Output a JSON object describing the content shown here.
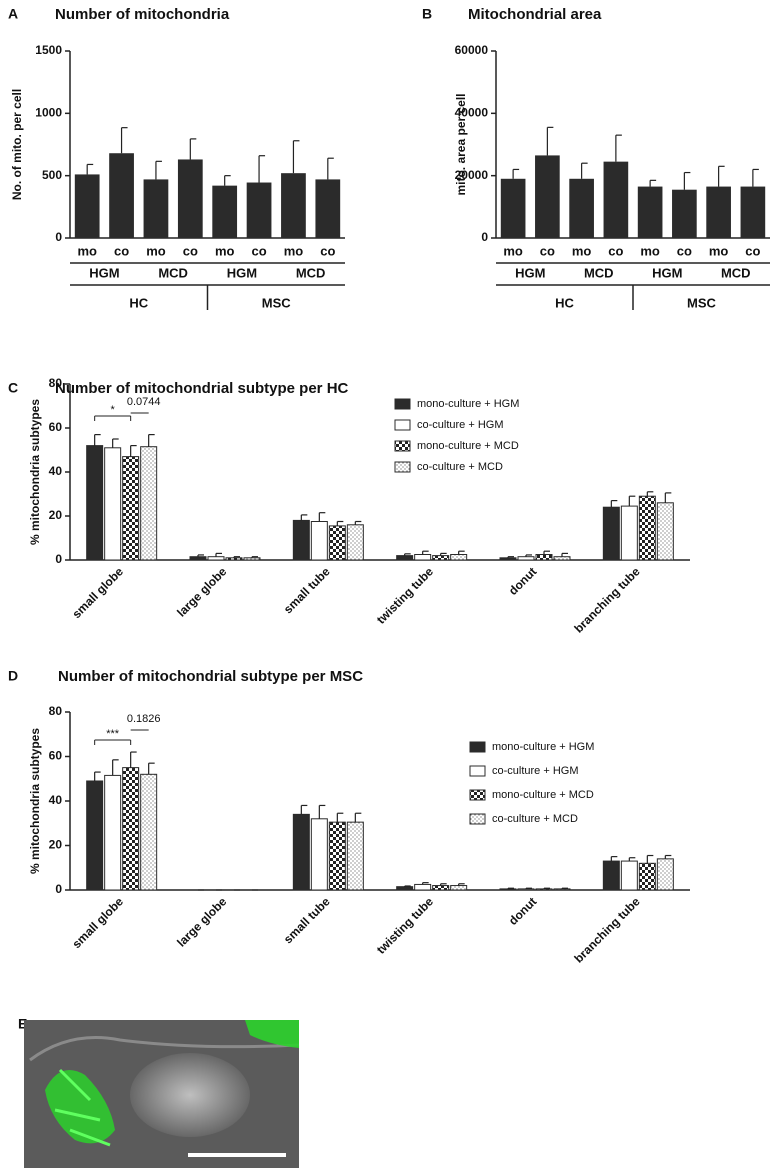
{
  "chart_data": [
    {
      "type": "bar",
      "panel_label": "A",
      "title": "Number of mitochondria",
      "y_label": "No. of mito. per cell",
      "categories": [
        "mo",
        "co",
        "mo",
        "co",
        "mo",
        "co",
        "mo",
        "co"
      ],
      "category_groups": [
        "HGM",
        "MCD",
        "HGM",
        "MCD"
      ],
      "super_groups": [
        "HC",
        "MSC"
      ],
      "values": [
        510,
        680,
        470,
        630,
        420,
        445,
        520,
        470
      ],
      "errors": [
        80,
        205,
        145,
        165,
        80,
        215,
        260,
        170
      ],
      "color": "#2b2b2b",
      "ylim": [
        0,
        1500
      ],
      "yticks": [
        0,
        500,
        1000,
        1500
      ]
    },
    {
      "type": "bar",
      "panel_label": "B",
      "title": "Mitochondrial area",
      "y_label": "mito. area per cell",
      "categories": [
        "mo",
        "co",
        "mo",
        "co",
        "mo",
        "co",
        "mo",
        "co"
      ],
      "category_groups": [
        "HGM",
        "MCD",
        "HGM",
        "MCD"
      ],
      "super_groups": [
        "HC",
        "MSC"
      ],
      "values": [
        19000,
        26500,
        19000,
        24500,
        16500,
        15500,
        16500,
        16500
      ],
      "errors": [
        3000,
        9000,
        5000,
        8500,
        2000,
        5500,
        6500,
        5500
      ],
      "color": "#2b2b2b",
      "ylim": [
        0,
        60000
      ],
      "yticks": [
        0,
        20000,
        40000,
        60000
      ]
    },
    {
      "type": "grouped_bar",
      "panel_label": "C",
      "title": "Number of mitochondrial subtype per HC",
      "y_label": "% mitochondria subtypes",
      "categories": [
        "small globe",
        "large globe",
        "small tube",
        "twisting tube",
        "donut",
        "branching tube"
      ],
      "series": [
        {
          "name": "mono-culture + HGM",
          "color": "#2b2b2b",
          "pattern": "solid",
          "values": [
            52,
            1.5,
            18,
            2,
            1,
            24
          ],
          "errors": [
            5,
            0.8,
            2.5,
            0.8,
            0.5,
            3
          ]
        },
        {
          "name": "co-culture + HGM",
          "color": "#2b2b2b",
          "pattern": "open",
          "values": [
            51,
            1.5,
            17.5,
            2.5,
            1.5,
            24.5
          ],
          "errors": [
            4,
            1.5,
            4,
            1.5,
            0.8,
            4.5
          ]
        },
        {
          "name": "mono-culture + MCD",
          "color": "#2b2b2b",
          "pattern": "checker",
          "values": [
            47,
            1,
            15.5,
            2,
            2.5,
            29
          ],
          "errors": [
            5,
            0.5,
            2,
            1,
            1.5,
            2
          ]
        },
        {
          "name": "co-culture + MCD",
          "color": "#2b2b2b",
          "pattern": "dots",
          "values": [
            51.5,
            1,
            16,
            2.5,
            1.5,
            26
          ],
          "errors": [
            5.5,
            0.5,
            1.5,
            1.5,
            1.5,
            4.5
          ]
        }
      ],
      "annotations": [
        "*",
        "0.0744"
      ],
      "ylim": [
        0,
        80
      ],
      "yticks": [
        0,
        20,
        40,
        60,
        80
      ]
    },
    {
      "type": "grouped_bar",
      "panel_label": "D",
      "title": "Number of mitochondrial subtype per MSC",
      "y_label": "% mitochondria subtypes",
      "categories": [
        "small globe",
        "large globe",
        "small tube",
        "twisting tube",
        "donut",
        "branching tube"
      ],
      "series": [
        {
          "name": "mono-culture + HGM",
          "color": "#2b2b2b",
          "pattern": "solid",
          "values": [
            49,
            0,
            34,
            1.5,
            0.5,
            13
          ],
          "errors": [
            4,
            0,
            4,
            0.3,
            0.3,
            2
          ]
        },
        {
          "name": "co-culture + HGM",
          "color": "#2b2b2b",
          "pattern": "open",
          "values": [
            51.5,
            0,
            32,
            2.5,
            0.5,
            13
          ],
          "errors": [
            7,
            0,
            6,
            0.8,
            0.3,
            1.5
          ]
        },
        {
          "name": "mono-culture + MCD",
          "color": "#2b2b2b",
          "pattern": "checker",
          "values": [
            55,
            0,
            30.5,
            2,
            0.5,
            12
          ],
          "errors": [
            7,
            0,
            4,
            0.8,
            0.3,
            3.5
          ]
        },
        {
          "name": "co-culture + MCD",
          "color": "#2b2b2b",
          "pattern": "dots",
          "values": [
            52,
            0,
            30.5,
            2,
            0.5,
            14
          ],
          "errors": [
            5,
            0,
            4,
            0.8,
            0.3,
            1.5
          ]
        }
      ],
      "annotations": [
        "***",
        "0.1826"
      ],
      "ylim": [
        0,
        80
      ],
      "yticks": [
        0,
        20,
        40,
        60,
        80
      ]
    }
  ],
  "image_panel": {
    "panel_label": "E"
  }
}
